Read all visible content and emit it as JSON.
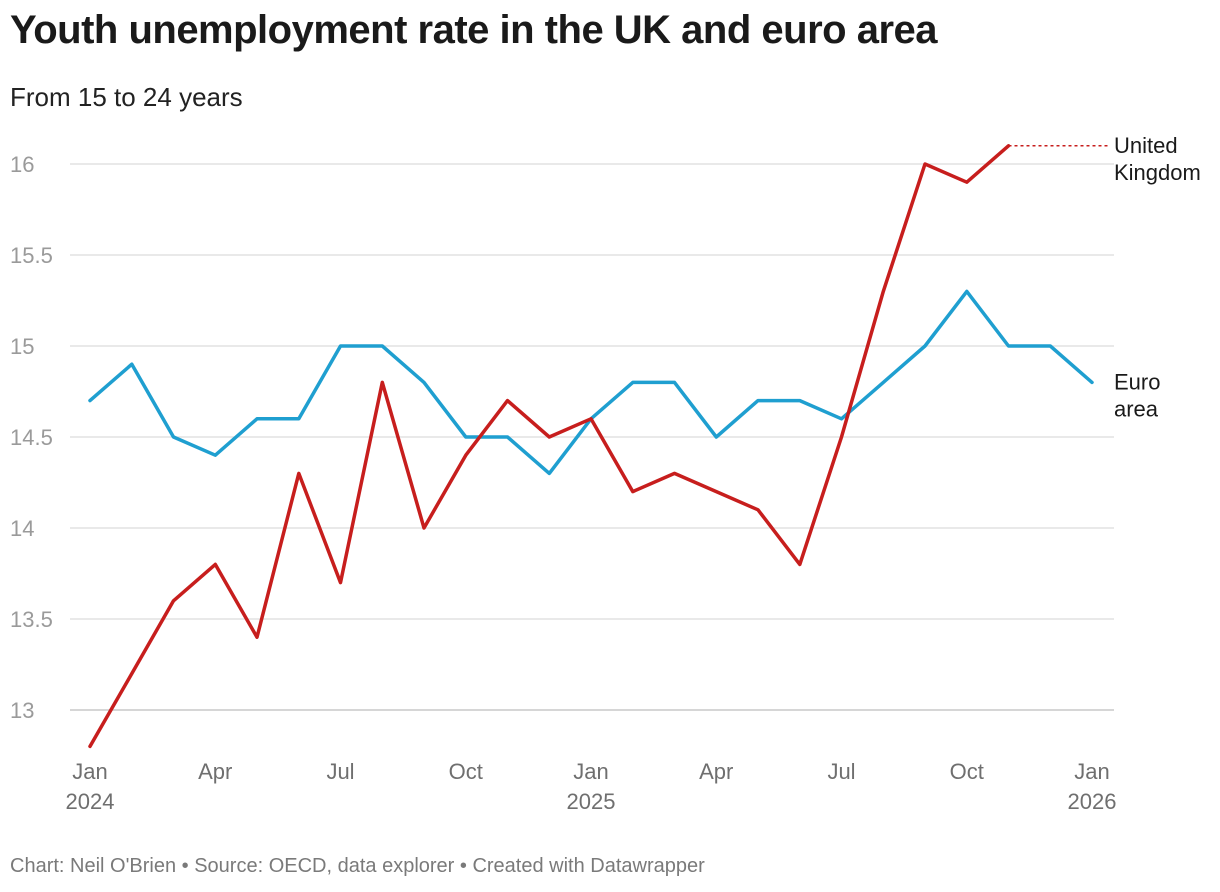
{
  "header": {
    "title": "Youth unemployment rate in the UK and euro area",
    "subtitle": "From 15 to 24 years"
  },
  "footer": {
    "credit": "Chart: Neil O'Brien • Source: OECD, data explorer • Created with Datawrapper"
  },
  "chart_data": {
    "type": "line",
    "title": "Youth unemployment rate in the UK and euro area",
    "subtitle": "From 15 to 24 years",
    "xlabel": "",
    "ylabel": "",
    "ylim": [
      12.8,
      16.2
    ],
    "y_ticks": [
      "13",
      "13.5",
      "14",
      "14.5",
      "15",
      "15.5",
      "16"
    ],
    "grid": true,
    "x_months": [
      "Jan 2024",
      "Feb 2024",
      "Mar 2024",
      "Apr 2024",
      "May 2024",
      "Jun 2024",
      "Jul 2024",
      "Aug 2024",
      "Sep 2024",
      "Oct 2024",
      "Nov 2024",
      "Dec 2024",
      "Jan 2025",
      "Feb 2025",
      "Mar 2025",
      "Apr 2025",
      "May 2025",
      "Jun 2025",
      "Jul 2025",
      "Aug 2025",
      "Sep 2025",
      "Oct 2025",
      "Nov 2025",
      "Dec 2025",
      "Jan 2026"
    ],
    "x_ticks": [
      {
        "index": 0,
        "line1": "Jan",
        "line2": "2024"
      },
      {
        "index": 3,
        "line1": "Apr",
        "line2": ""
      },
      {
        "index": 6,
        "line1": "Jul",
        "line2": ""
      },
      {
        "index": 9,
        "line1": "Oct",
        "line2": ""
      },
      {
        "index": 12,
        "line1": "Jan",
        "line2": "2025"
      },
      {
        "index": 15,
        "line1": "Apr",
        "line2": ""
      },
      {
        "index": 18,
        "line1": "Jul",
        "line2": ""
      },
      {
        "index": 21,
        "line1": "Oct",
        "line2": ""
      },
      {
        "index": 24,
        "line1": "Jan",
        "line2": "2026"
      }
    ],
    "series": [
      {
        "name": "Euro area",
        "label_lines": [
          "Euro",
          "area"
        ],
        "color": "#1f9fd0",
        "values": [
          14.7,
          14.9,
          14.5,
          14.4,
          14.6,
          14.6,
          15.0,
          15.0,
          14.8,
          14.5,
          14.5,
          14.3,
          14.6,
          14.8,
          14.8,
          14.5,
          14.7,
          14.7,
          14.6,
          14.8,
          15.0,
          15.3,
          15.0,
          15.0,
          14.8
        ]
      },
      {
        "name": "United Kingdom",
        "label_lines": [
          "United",
          "Kingdom"
        ],
        "color": "#c71e1d",
        "values": [
          12.8,
          13.2,
          13.6,
          13.8,
          13.4,
          14.3,
          13.7,
          14.8,
          14.0,
          14.4,
          14.7,
          14.5,
          14.6,
          14.2,
          14.3,
          14.2,
          14.1,
          13.8,
          14.5,
          15.3,
          16.0,
          15.9,
          16.1,
          null,
          null
        ]
      }
    ]
  }
}
